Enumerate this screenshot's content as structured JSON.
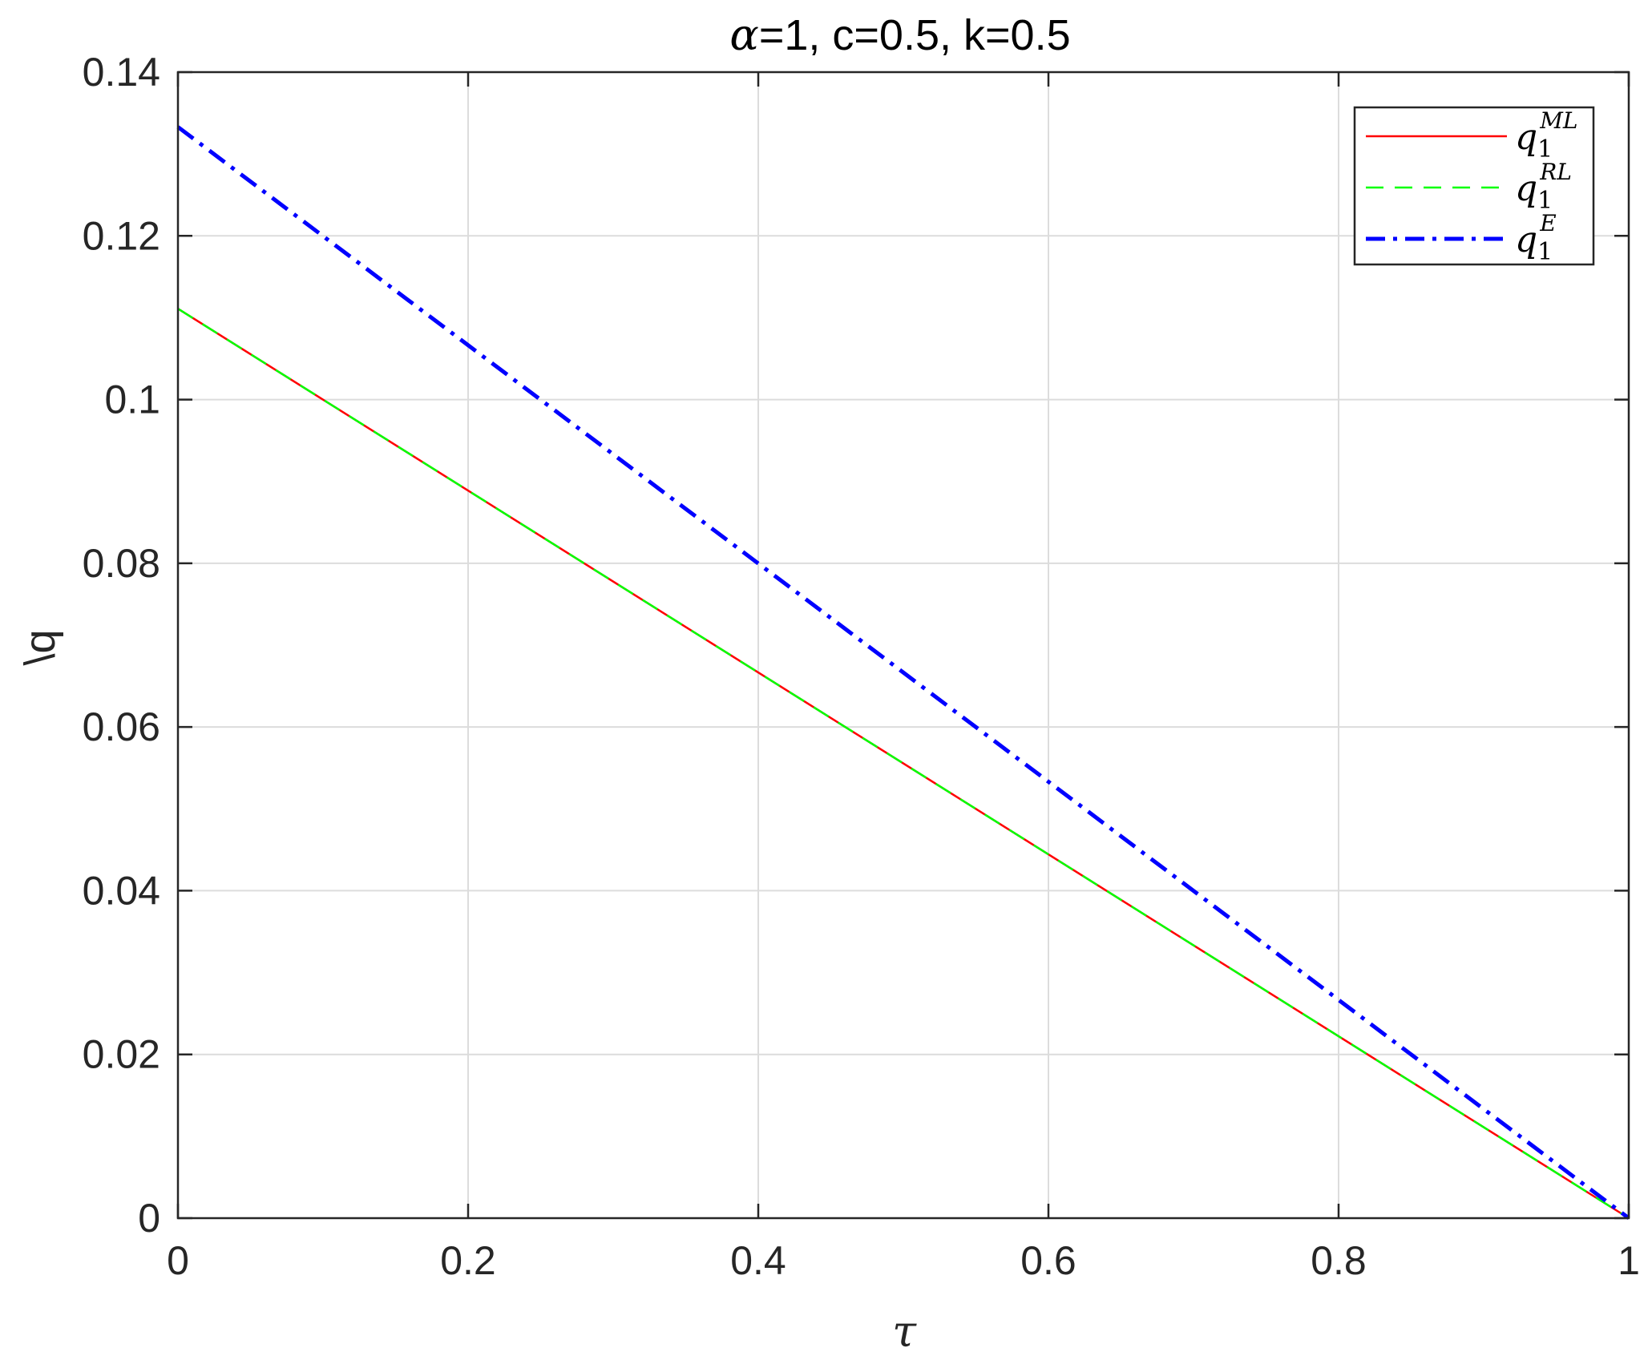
{
  "chart_data": {
    "type": "line",
    "title_greek": "α",
    "title_rest": "=1, c=0.5, k=0.5",
    "xlabel": "τ",
    "ylabel": "\\q",
    "xlim": [
      0,
      1
    ],
    "ylim": [
      0,
      0.14
    ],
    "xticks": [
      0,
      0.2,
      0.4,
      0.6,
      0.8,
      1
    ],
    "xtick_labels": [
      "0",
      "0.2",
      "0.4",
      "0.6",
      "0.8",
      "1"
    ],
    "yticks": [
      0,
      0.02,
      0.04,
      0.06,
      0.08,
      0.1,
      0.12,
      0.14
    ],
    "ytick_labels": [
      "0",
      "0.02",
      "0.04",
      "0.06",
      "0.08",
      "0.1",
      "0.12",
      "0.14"
    ],
    "grid": true,
    "legend_position": "top-right",
    "series": [
      {
        "name_base": "q",
        "name_sub": "1",
        "name_sup": "ML",
        "color": "#ff0000",
        "style": "solid",
        "x": [
          0,
          1
        ],
        "y": [
          0.1111,
          0
        ]
      },
      {
        "name_base": "q",
        "name_sub": "1",
        "name_sup": "RL",
        "color": "#00ff00",
        "style": "dashed",
        "x": [
          0,
          1
        ],
        "y": [
          0.1111,
          0
        ]
      },
      {
        "name_base": "q",
        "name_sub": "1",
        "name_sup": "E",
        "color": "#0000ff",
        "style": "dashdot",
        "x": [
          0,
          1
        ],
        "y": [
          0.1333,
          0
        ]
      }
    ]
  }
}
